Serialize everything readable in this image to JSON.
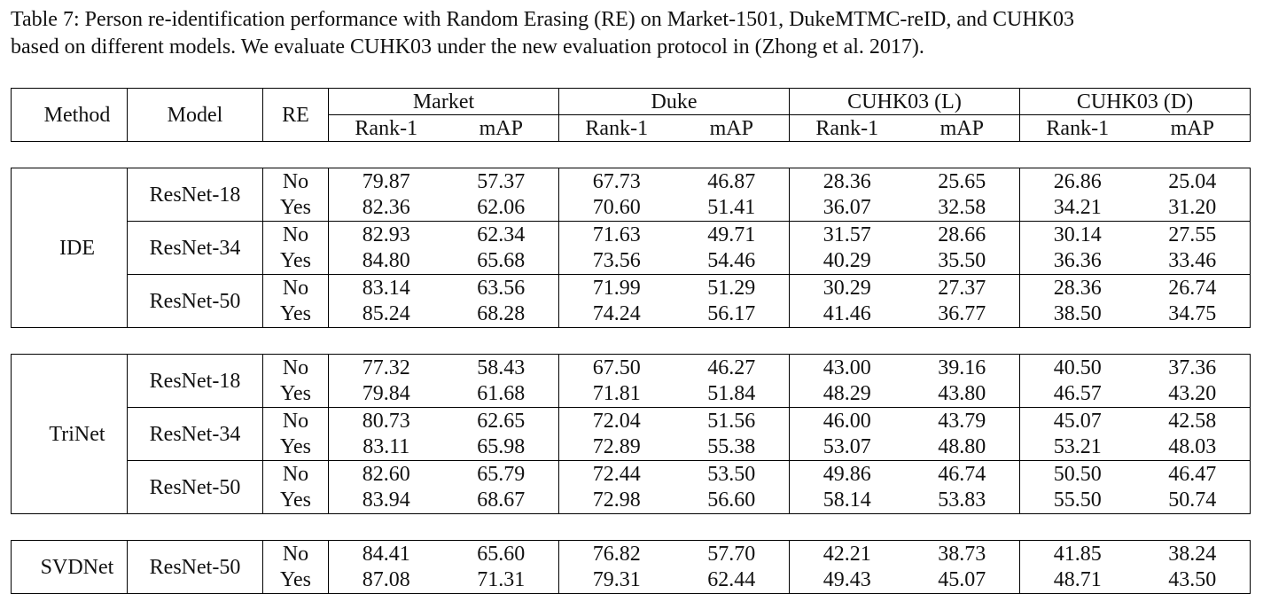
{
  "caption": {
    "line1": "Table 7:  Person re-identification performance with Random Erasing (RE) on Market-1501, DukeMTMC-reID, and CUHK03",
    "line2": "based on different models. We evaluate CUHK03 under the new evaluation protocol in (Zhong et al. 2017)."
  },
  "header": {
    "method": "Method",
    "model": "Model",
    "re": "RE",
    "groups": [
      "Market",
      "Duke",
      "CUHK03 (L)",
      "CUHK03 (D)"
    ],
    "rank1": "Rank-1",
    "map": "mAP"
  },
  "blocks": [
    {
      "method": "IDE",
      "models": [
        {
          "name": "ResNet-18",
          "rows": [
            {
              "re": "No",
              "values": [
                "79.87",
                "57.37",
                "67.73",
                "46.87",
                "28.36",
                "25.65",
                "26.86",
                "25.04"
              ]
            },
            {
              "re": "Yes",
              "values": [
                "82.36",
                "62.06",
                "70.60",
                "51.41",
                "36.07",
                "32.58",
                "34.21",
                "31.20"
              ]
            }
          ]
        },
        {
          "name": "ResNet-34",
          "rows": [
            {
              "re": "No",
              "values": [
                "82.93",
                "62.34",
                "71.63",
                "49.71",
                "31.57",
                "28.66",
                "30.14",
                "27.55"
              ]
            },
            {
              "re": "Yes",
              "values": [
                "84.80",
                "65.68",
                "73.56",
                "54.46",
                "40.29",
                "35.50",
                "36.36",
                "33.46"
              ]
            }
          ]
        },
        {
          "name": "ResNet-50",
          "rows": [
            {
              "re": "No",
              "values": [
                "83.14",
                "63.56",
                "71.99",
                "51.29",
                "30.29",
                "27.37",
                "28.36",
                "26.74"
              ]
            },
            {
              "re": "Yes",
              "values": [
                "85.24",
                "68.28",
                "74.24",
                "56.17",
                "41.46",
                "36.77",
                "38.50",
                "34.75"
              ]
            }
          ]
        }
      ]
    },
    {
      "method": "TriNet",
      "models": [
        {
          "name": "ResNet-18",
          "rows": [
            {
              "re": "No",
              "values": [
                "77.32",
                "58.43",
                "67.50",
                "46.27",
                "43.00",
                "39.16",
                "40.50",
                "37.36"
              ]
            },
            {
              "re": "Yes",
              "values": [
                "79.84",
                "61.68",
                "71.81",
                "51.84",
                "48.29",
                "43.80",
                "46.57",
                "43.20"
              ]
            }
          ]
        },
        {
          "name": "ResNet-34",
          "rows": [
            {
              "re": "No",
              "values": [
                "80.73",
                "62.65",
                "72.04",
                "51.56",
                "46.00",
                "43.79",
                "45.07",
                "42.58"
              ]
            },
            {
              "re": "Yes",
              "values": [
                "83.11",
                "65.98",
                "72.89",
                "55.38",
                "53.07",
                "48.80",
                "53.21",
                "48.03"
              ]
            }
          ]
        },
        {
          "name": "ResNet-50",
          "rows": [
            {
              "re": "No",
              "values": [
                "82.60",
                "65.79",
                "72.44",
                "53.50",
                "49.86",
                "46.74",
                "50.50",
                "46.47"
              ]
            },
            {
              "re": "Yes",
              "values": [
                "83.94",
                "68.67",
                "72.98",
                "56.60",
                "58.14",
                "53.83",
                "55.50",
                "50.74"
              ],
              "bold": [
                4,
                5,
                6,
                7
              ]
            }
          ]
        }
      ]
    },
    {
      "method": "SVDNet",
      "models": [
        {
          "name": "ResNet-50",
          "rows": [
            {
              "re": "No",
              "values": [
                "84.41",
                "65.60",
                "76.82",
                "57.70",
                "42.21",
                "38.73",
                "41.85",
                "38.24"
              ]
            },
            {
              "re": "Yes",
              "values": [
                "87.08",
                "71.31",
                "79.31",
                "62.44",
                "49.43",
                "45.07",
                "48.71",
                "43.50"
              ],
              "bold": [
                0,
                1,
                2,
                3
              ]
            }
          ]
        }
      ]
    }
  ]
}
